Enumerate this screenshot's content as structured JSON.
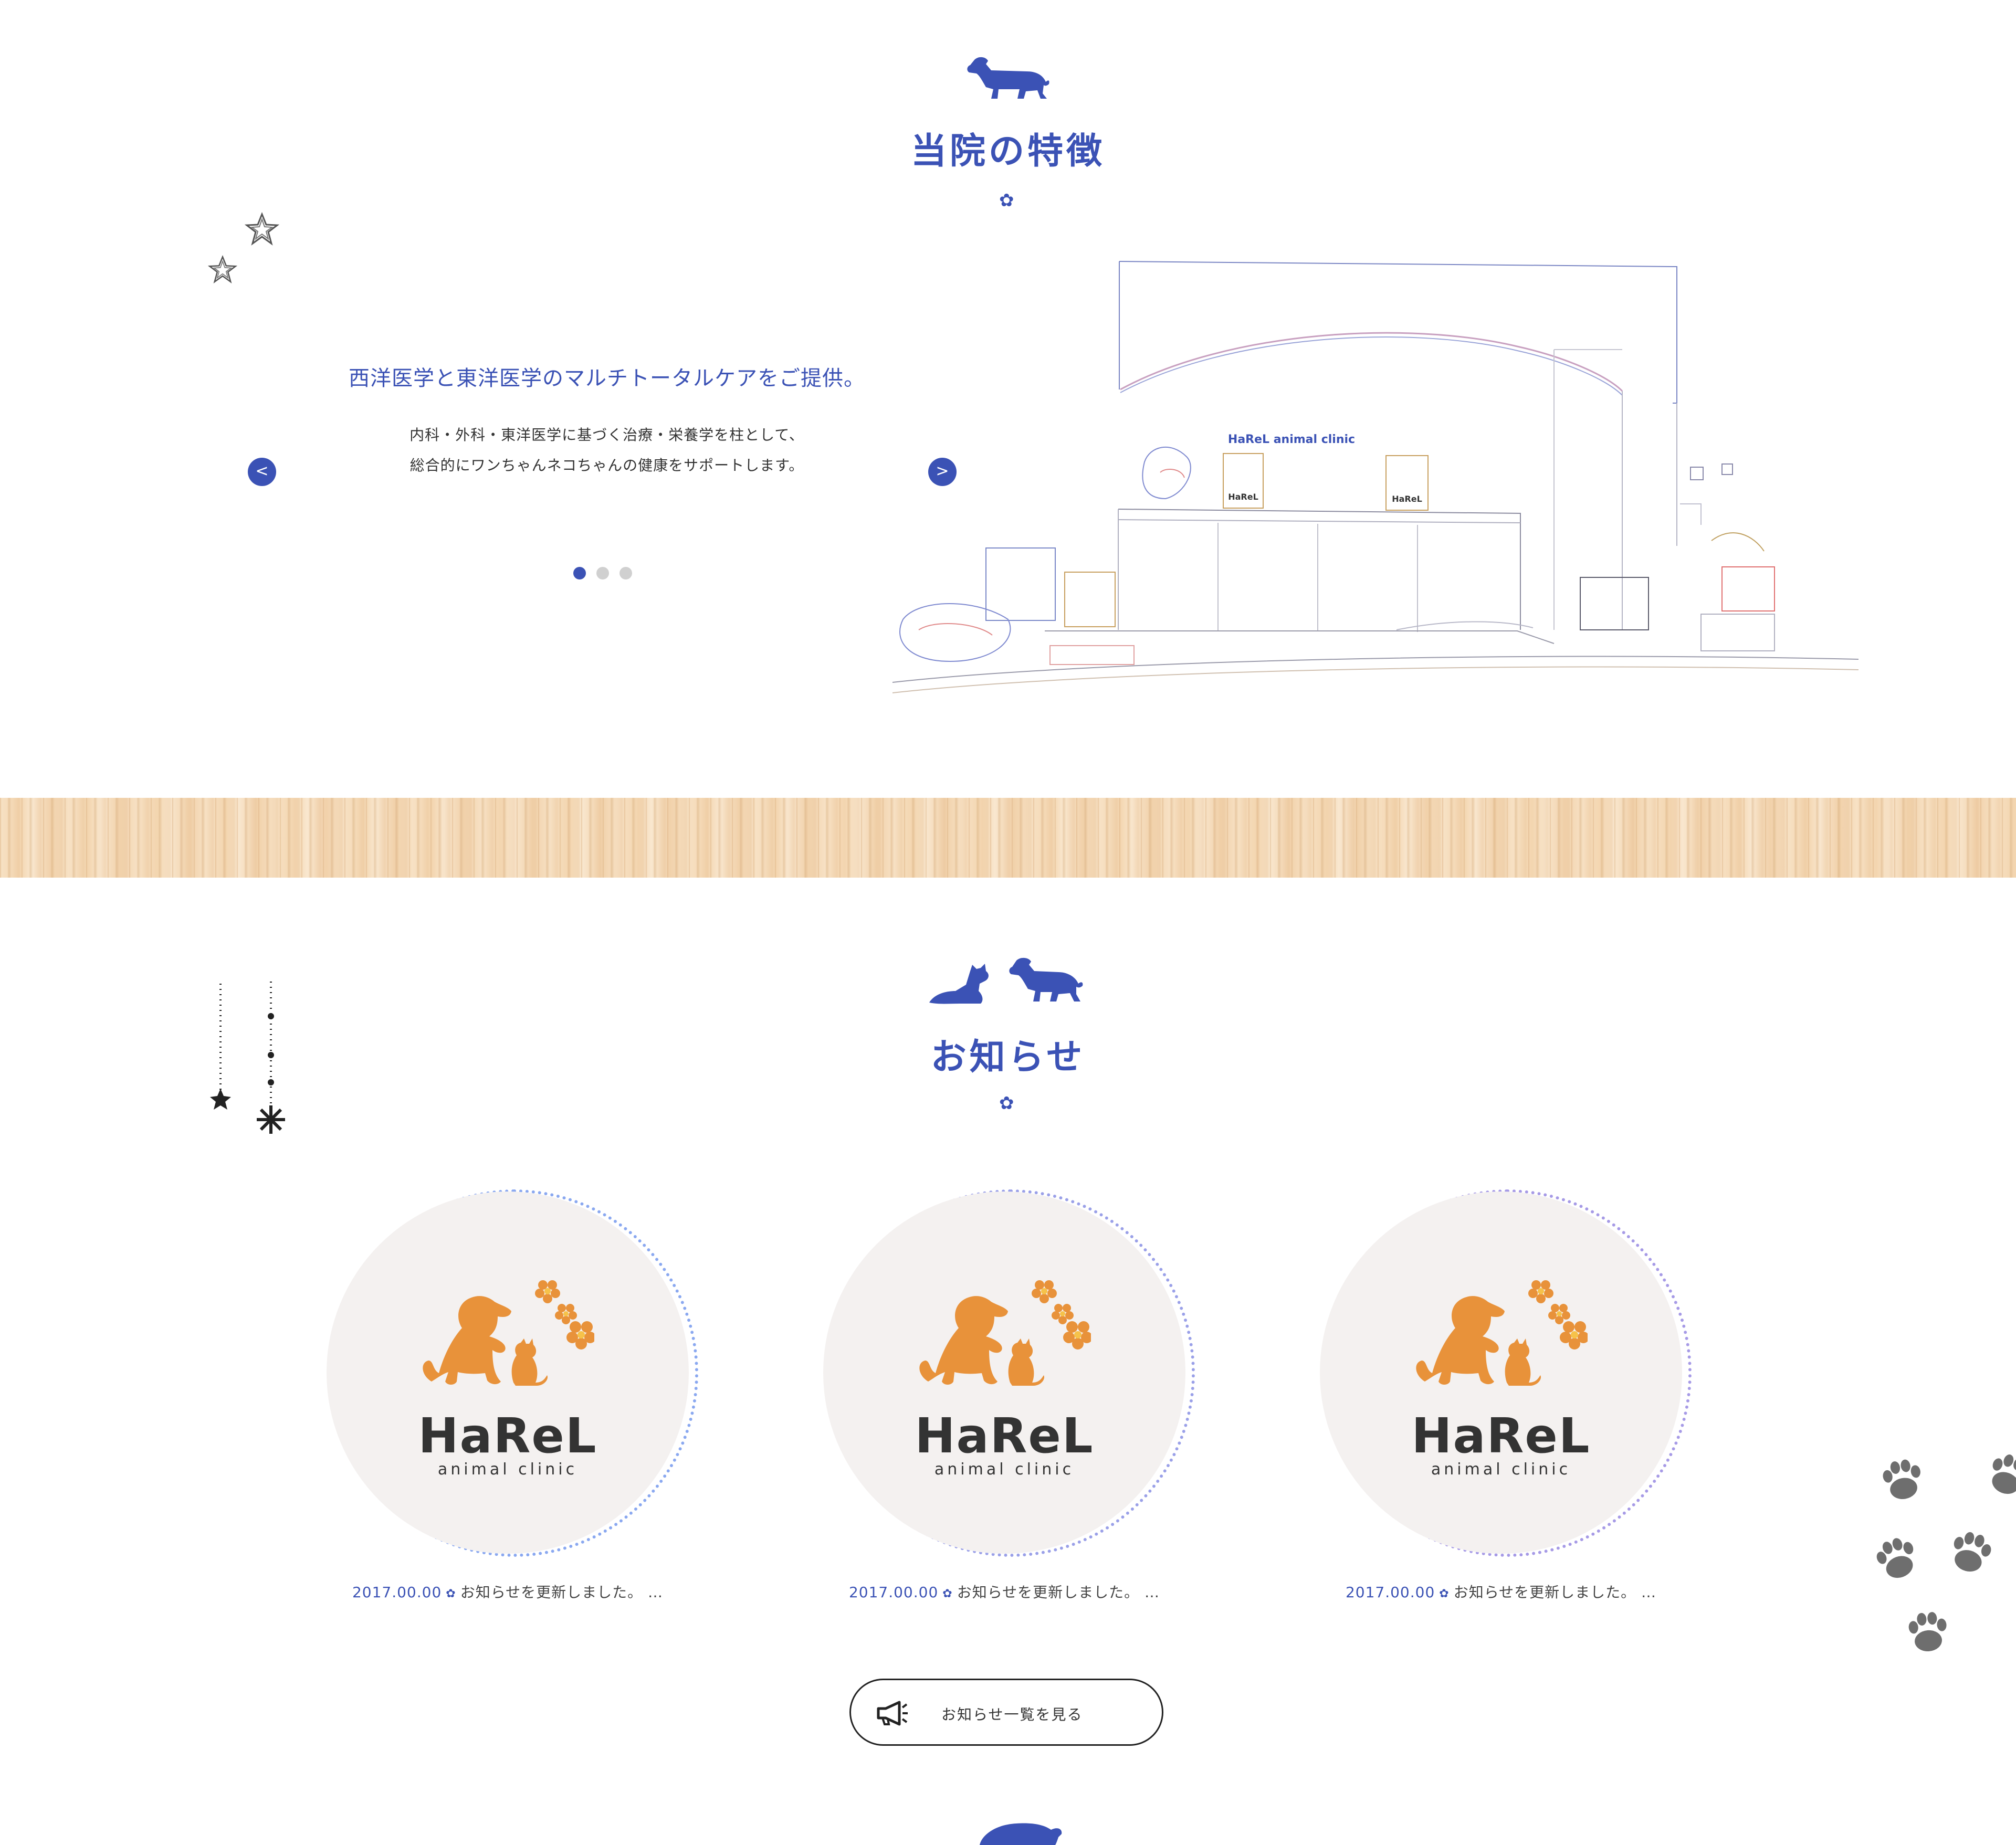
{
  "features": {
    "title": "当院の特徴",
    "slide": {
      "heading": "西洋医学と東洋医学のマルチトータルケアをご提供。",
      "body_line1": "内科・外科・東洋医学に基づく治療・栄養学を柱として、",
      "body_line2": "総合的にワンちゃんネコちゃんの健康をサポートします。",
      "prev_label": "<",
      "next_label": ">",
      "image_sign": "HaReL animal clinic",
      "image_logo": "HaReL"
    },
    "dots_count": 3,
    "active_dot": 0
  },
  "news": {
    "title": "お知らせ",
    "items": [
      {
        "date": "2017.00.00",
        "text": "お知らせを更新しました。 …",
        "logo": "HaReL",
        "logo_sub": "animal clinic"
      },
      {
        "date": "2017.00.00",
        "text": "お知らせを更新しました。 …",
        "logo": "HaReL",
        "logo_sub": "animal clinic"
      },
      {
        "date": "2017.00.00",
        "text": "お知らせを更新しました。 …",
        "logo": "HaReL",
        "logo_sub": "animal clinic"
      }
    ],
    "more_label": "お知らせ一覧を見る",
    "more_icon": "megaphone-icon"
  },
  "colors": {
    "accent": "#3b52b5",
    "logo_orange": "#e8923a",
    "paw": "#6e6e6e"
  }
}
